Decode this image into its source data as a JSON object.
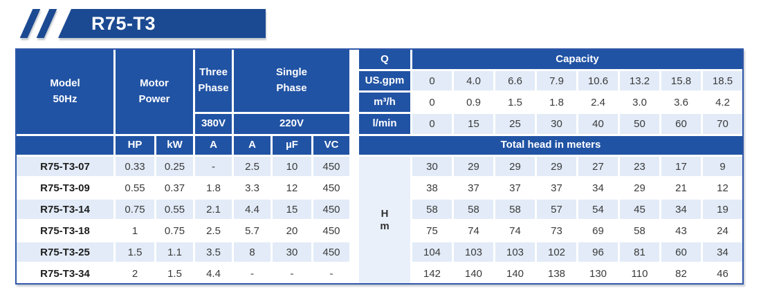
{
  "badge": {
    "title": "R75-T3"
  },
  "colors": {
    "badge_blue": "#1c4a92",
    "header_blue": "#2153a4",
    "alt_row": "#e2ebf7",
    "hm_bg": "#e9f0fa",
    "border_blue": "#2e56a8"
  },
  "table": {
    "header": {
      "model_line1": "Model",
      "model_line2": "50Hz",
      "motor_line1": "Motor",
      "motor_line2": "Power",
      "three_line1": "Three",
      "three_line2": "Phase",
      "three_voltage": "380V",
      "single_line1": "Single",
      "single_line2": "Phase",
      "single_voltage": "220V",
      "q": "Q",
      "capacity": "Capacity",
      "total_head": "Total head in meters",
      "hm_line1": "H",
      "hm_line2": "m",
      "cols": [
        "HP",
        "kW",
        "A",
        "A",
        "µF",
        "VC"
      ]
    },
    "capacity_rows": [
      {
        "unit": "US.gpm",
        "values": [
          "0",
          "4.0",
          "6.6",
          "7.9",
          "10.6",
          "13.2",
          "15.8",
          "18.5"
        ]
      },
      {
        "unit": "m³/h",
        "values": [
          "0",
          "0.9",
          "1.5",
          "1.8",
          "2.4",
          "3.0",
          "3.6",
          "4.2"
        ]
      },
      {
        "unit": "l/min",
        "values": [
          "0",
          "15",
          "25",
          "30",
          "40",
          "50",
          "60",
          "70"
        ]
      }
    ],
    "rows": [
      {
        "model": "R75-T3-07",
        "specs": [
          "0.33",
          "0.25",
          "-",
          "2.5",
          "10",
          "450"
        ],
        "head": [
          "30",
          "29",
          "29",
          "29",
          "27",
          "23",
          "17",
          "9"
        ]
      },
      {
        "model": "R75-T3-09",
        "specs": [
          "0.55",
          "0.37",
          "1.8",
          "3.3",
          "12",
          "450"
        ],
        "head": [
          "38",
          "37",
          "37",
          "37",
          "34",
          "29",
          "21",
          "12"
        ]
      },
      {
        "model": "R75-T3-14",
        "specs": [
          "0.75",
          "0.55",
          "2.1",
          "4.4",
          "15",
          "450"
        ],
        "head": [
          "58",
          "58",
          "58",
          "57",
          "54",
          "45",
          "34",
          "19"
        ]
      },
      {
        "model": "R75-T3-18",
        "specs": [
          "1",
          "0.75",
          "2.5",
          "5.7",
          "20",
          "450"
        ],
        "head": [
          "75",
          "74",
          "74",
          "73",
          "69",
          "58",
          "43",
          "24"
        ]
      },
      {
        "model": "R75-T3-25",
        "specs": [
          "1.5",
          "1.1",
          "3.5",
          "8",
          "30",
          "450"
        ],
        "head": [
          "104",
          "103",
          "103",
          "102",
          "96",
          "81",
          "60",
          "34"
        ]
      },
      {
        "model": "R75-T3-34",
        "specs": [
          "2",
          "1.5",
          "4.4",
          "-",
          "-",
          "-"
        ],
        "head": [
          "142",
          "140",
          "140",
          "138",
          "130",
          "110",
          "82",
          "46"
        ]
      }
    ]
  }
}
